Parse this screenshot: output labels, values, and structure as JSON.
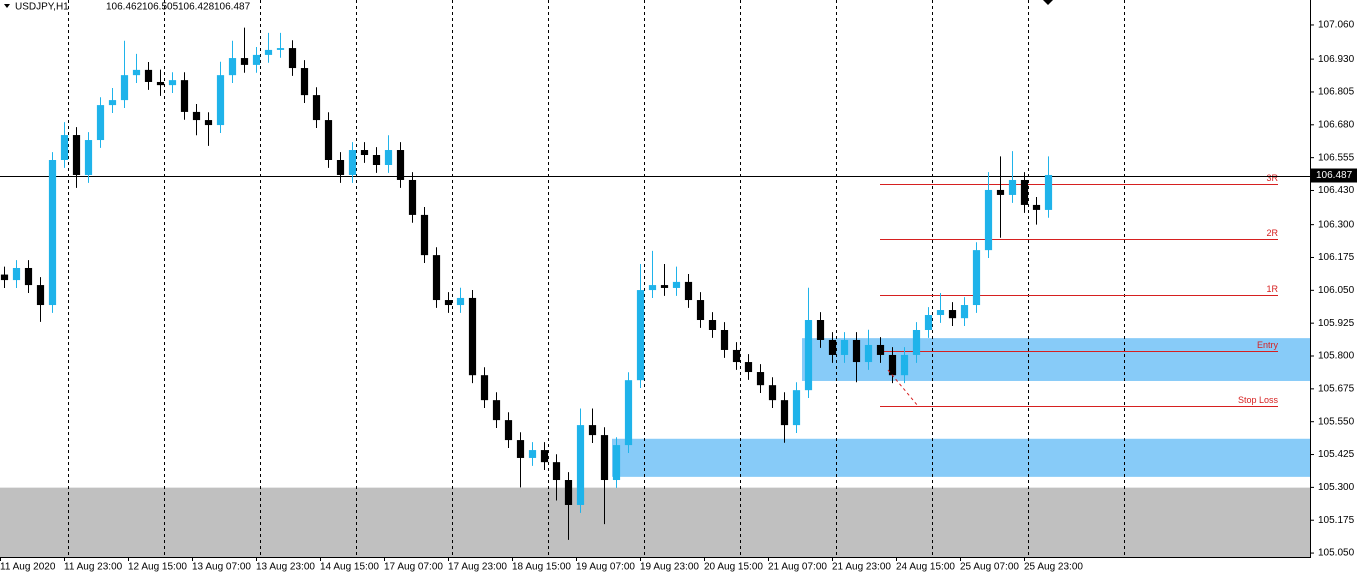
{
  "chart_data": {
    "type": "candlestick",
    "symbol": "USDJPY,H1",
    "header_prices": [
      106.462,
      106.505,
      106.428,
      106.487
    ],
    "current_price": 106.487,
    "up_color": "#1fb3ea",
    "down_color": "#000000",
    "xlim": [
      0,
      327.5
    ],
    "ylim": [
      105.035,
      107.155
    ],
    "xticks": [
      {
        "value": 0,
        "label": "11 Aug 2020"
      },
      {
        "value": 16,
        "label": "11 Aug 23:00"
      },
      {
        "value": 32,
        "label": "12 Aug 15:00"
      },
      {
        "value": 48,
        "label": "13 Aug 07:00"
      },
      {
        "value": 64,
        "label": "13 Aug 23:00"
      },
      {
        "value": 80,
        "label": "14 Aug 15:00"
      },
      {
        "value": 96,
        "label": "17 Aug 07:00"
      },
      {
        "value": 112,
        "label": "17 Aug 23:00"
      },
      {
        "value": 128,
        "label": "18 Aug 15:00"
      },
      {
        "value": 144,
        "label": "19 Aug 07:00"
      },
      {
        "value": 160,
        "label": "19 Aug 23:00"
      },
      {
        "value": 176,
        "label": "20 Aug 15:00"
      },
      {
        "value": 192,
        "label": "21 Aug 07:00"
      },
      {
        "value": 208,
        "label": "21 Aug 23:00"
      },
      {
        "value": 224,
        "label": "24 Aug 15:00"
      },
      {
        "value": 240,
        "label": "25 Aug 07:00"
      },
      {
        "value": 256,
        "label": "25 Aug 23:00"
      }
    ],
    "yticks": [
      {
        "value": 107.06,
        "label": "107.060"
      },
      {
        "value": 106.93,
        "label": "106.930"
      },
      106.805,
      {
        "value": 106.68,
        "label": "106.680"
      },
      106.555,
      {
        "value": 106.43,
        "label": "106.430"
      },
      {
        "value": 106.3,
        "label": "106.300"
      },
      106.175,
      {
        "value": 106.05,
        "label": "106.050"
      },
      105.925,
      {
        "value": 105.8,
        "label": "105.800"
      },
      105.675,
      {
        "value": 105.55,
        "label": "105.550"
      },
      105.425,
      {
        "value": 105.3,
        "label": "105.300"
      },
      105.175,
      {
        "value": 105.05,
        "label": "105.050"
      }
    ],
    "separators": [
      17,
      41,
      65,
      89,
      113,
      137,
      161,
      185,
      209,
      233,
      257,
      281
    ],
    "zones": [
      {
        "color": "#c0c0c0",
        "x": [
          0,
          327.5
        ],
        "y": [
          105.035,
          105.299
        ]
      },
      {
        "color": "#87cbf8",
        "x": [
          153,
          327.5
        ],
        "y": [
          105.34,
          105.485
        ]
      },
      {
        "color": "#87cbf8",
        "x": [
          200.5,
          327.5
        ],
        "y": [
          105.705,
          105.868
        ]
      }
    ],
    "levels": {
      "color": "#d62020",
      "x": [
        220,
        319.5
      ],
      "items": [
        {
          "name": "3R",
          "value": 106.455
        },
        {
          "name": "2R",
          "value": 106.245
        },
        {
          "name": "1R",
          "value": 106.032
        },
        {
          "name": "Entry",
          "value": 105.82
        },
        {
          "name": "Stop Loss",
          "value": 105.61
        }
      ]
    },
    "x": [
      0,
      3,
      6,
      9,
      12,
      15,
      18,
      21,
      24,
      27,
      30,
      33,
      36,
      39,
      42,
      45,
      48,
      51,
      54,
      57,
      60,
      63,
      66,
      69,
      72,
      75,
      78,
      81,
      84,
      87,
      90,
      93,
      96,
      99,
      102,
      105,
      108,
      111,
      114,
      117,
      120,
      123,
      126,
      129,
      132,
      135,
      138,
      141,
      144,
      147,
      150,
      153,
      156,
      159,
      162,
      165,
      168,
      171,
      174,
      177,
      180,
      183,
      186,
      189,
      192,
      195,
      198,
      201,
      204,
      207,
      210,
      213,
      216,
      219,
      222,
      225,
      228,
      231,
      234,
      237,
      240,
      243,
      246,
      249,
      252,
      255,
      258,
      261
    ],
    "open": [
      106.11,
      106.089,
      106.135,
      106.07,
      105.994,
      106.546,
      106.641,
      106.489,
      106.622,
      106.755,
      106.774,
      106.869,
      106.889,
      106.843,
      106.831,
      106.85,
      106.729,
      106.698,
      106.679,
      106.869,
      106.934,
      106.908,
      106.946,
      106.965,
      106.972,
      106.896,
      106.793,
      106.698,
      106.546,
      106.489,
      106.584,
      106.565,
      106.527,
      106.584,
      106.47,
      106.337,
      106.184,
      106.013,
      105.994,
      106.021,
      105.727,
      105.632,
      105.556,
      105.48,
      105.412,
      105.442,
      105.396,
      105.328,
      105.233,
      105.537,
      105.499,
      105.328,
      105.461,
      105.708,
      106.051,
      106.07,
      106.059,
      106.082,
      106.013,
      105.937,
      105.899,
      105.823,
      105.777,
      105.739,
      105.689,
      105.632,
      105.537,
      105.67,
      105.937,
      105.861,
      105.804,
      105.861,
      105.777,
      105.842,
      105.804,
      105.727,
      105.804,
      105.899,
      105.956,
      105.975,
      105.944,
      105.994,
      106.203,
      106.432,
      106.413,
      106.47,
      106.375,
      106.356
    ],
    "high": [
      106.14,
      106.165,
      106.165,
      106.1,
      106.576,
      106.69,
      106.671,
      106.652,
      106.785,
      106.82,
      107.0,
      106.95,
      106.919,
      106.89,
      106.88,
      106.88,
      106.759,
      106.728,
      106.92,
      107.0,
      107.05,
      106.976,
      107.03,
      107.03,
      107.002,
      106.926,
      106.823,
      106.728,
      106.576,
      106.614,
      106.614,
      106.595,
      106.64,
      106.614,
      106.5,
      106.367,
      106.214,
      106.043,
      106.06,
      106.051,
      105.757,
      105.662,
      105.586,
      105.51,
      105.472,
      105.472,
      105.426,
      105.358,
      105.6,
      105.6,
      105.529,
      105.491,
      105.738,
      106.15,
      106.2,
      106.15,
      106.14,
      106.112,
      106.043,
      105.967,
      105.929,
      105.853,
      105.807,
      105.769,
      105.719,
      105.662,
      105.7,
      106.06,
      105.967,
      105.891,
      105.891,
      105.891,
      105.9,
      105.872,
      105.834,
      105.834,
      105.929,
      105.986,
      106.04,
      106.005,
      106.024,
      106.233,
      106.5,
      106.56,
      106.58,
      106.5,
      106.405,
      106.56
    ],
    "low": [
      106.059,
      106.059,
      106.04,
      105.93,
      105.964,
      106.516,
      106.44,
      106.459,
      106.592,
      106.725,
      106.744,
      106.839,
      106.813,
      106.79,
      106.801,
      106.699,
      106.64,
      106.6,
      106.649,
      106.839,
      106.878,
      106.878,
      106.916,
      106.935,
      106.866,
      106.763,
      106.668,
      106.516,
      106.459,
      106.459,
      106.535,
      106.497,
      106.497,
      106.44,
      106.307,
      106.154,
      105.983,
      105.964,
      105.964,
      105.697,
      105.602,
      105.526,
      105.45,
      105.3,
      105.382,
      105.366,
      105.25,
      105.1,
      105.203,
      105.469,
      105.16,
      105.298,
      105.431,
      105.678,
      106.021,
      106.029,
      106.029,
      105.983,
      105.907,
      105.869,
      105.793,
      105.747,
      105.709,
      105.659,
      105.602,
      105.47,
      105.507,
      105.64,
      105.831,
      105.774,
      105.774,
      105.7,
      105.747,
      105.774,
      105.697,
      105.697,
      105.774,
      105.869,
      105.926,
      105.914,
      105.914,
      105.964,
      106.173,
      106.25,
      106.383,
      106.345,
      106.3,
      106.326
    ],
    "close": [
      106.089,
      106.135,
      106.07,
      105.994,
      106.546,
      106.641,
      106.489,
      106.622,
      106.755,
      106.774,
      106.869,
      106.889,
      106.843,
      106.831,
      106.85,
      106.729,
      106.698,
      106.679,
      106.869,
      106.934,
      106.908,
      106.946,
      106.965,
      106.972,
      106.896,
      106.793,
      106.698,
      106.546,
      106.489,
      106.584,
      106.565,
      106.527,
      106.584,
      106.47,
      106.337,
      106.184,
      106.013,
      105.994,
      106.021,
      105.727,
      105.632,
      105.556,
      105.48,
      105.412,
      105.442,
      105.396,
      105.328,
      105.233,
      105.537,
      105.499,
      105.328,
      105.461,
      105.708,
      106.051,
      106.07,
      106.059,
      106.082,
      106.013,
      105.937,
      105.899,
      105.823,
      105.777,
      105.739,
      105.689,
      105.632,
      105.537,
      105.67,
      105.937,
      105.861,
      105.804,
      105.861,
      105.777,
      105.842,
      105.804,
      105.727,
      105.804,
      105.899,
      105.956,
      105.975,
      105.944,
      105.994,
      106.203,
      106.432,
      106.413,
      106.47,
      106.375,
      106.356,
      106.489
    ]
  }
}
